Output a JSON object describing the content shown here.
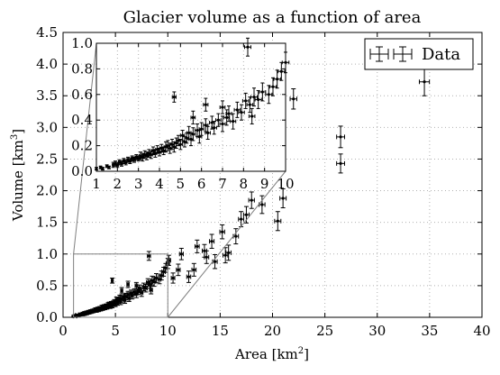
{
  "chart_data": {
    "type": "scatter",
    "title": "Glacier volume as a function of area",
    "xlabel": "Area [km",
    "xlabel_sup": "2",
    "xlabel_close": "]",
    "ylabel": "Volume [km",
    "ylabel_sup": "3",
    "ylabel_close": "]",
    "xlim": [
      0,
      40
    ],
    "ylim": [
      0,
      4.5
    ],
    "xticks": [
      "0",
      "5",
      "10",
      "15",
      "20",
      "25",
      "30",
      "35",
      "40"
    ],
    "yticks": [
      "0.0",
      "0.5",
      "1.0",
      "1.5",
      "2.0",
      "2.5",
      "3.0",
      "3.5",
      "4.0",
      "4.5"
    ],
    "grid": true,
    "legend": {
      "label": "Data",
      "placement": "top-right"
    },
    "inset": {
      "xlim": [
        1,
        10
      ],
      "ylim": [
        0,
        1.0
      ],
      "xticks": [
        "1",
        "2",
        "3",
        "4",
        "5",
        "6",
        "7",
        "8",
        "9",
        "10"
      ],
      "yticks": [
        "0.0",
        "0.2",
        "0.4",
        "0.6",
        "0.8",
        "1.0"
      ],
      "zoom_region": {
        "x": [
          1,
          10
        ],
        "y": [
          0,
          1.0
        ]
      }
    },
    "series": [
      {
        "name": "Data",
        "points": [
          [
            1.0,
            0.02,
            0.03,
            0.01
          ],
          [
            1.2,
            0.03,
            0.03,
            0.01
          ],
          [
            1.3,
            0.02,
            0.03,
            0.01
          ],
          [
            1.5,
            0.04,
            0.04,
            0.01
          ],
          [
            1.6,
            0.03,
            0.04,
            0.01
          ],
          [
            1.8,
            0.05,
            0.04,
            0.02
          ],
          [
            1.9,
            0.06,
            0.04,
            0.02
          ],
          [
            2.0,
            0.05,
            0.05,
            0.02
          ],
          [
            2.1,
            0.07,
            0.05,
            0.02
          ],
          [
            2.2,
            0.06,
            0.05,
            0.02
          ],
          [
            2.3,
            0.08,
            0.05,
            0.02
          ],
          [
            2.4,
            0.07,
            0.05,
            0.02
          ],
          [
            2.5,
            0.09,
            0.05,
            0.02
          ],
          [
            2.6,
            0.08,
            0.06,
            0.02
          ],
          [
            2.7,
            0.1,
            0.06,
            0.02
          ],
          [
            2.8,
            0.09,
            0.06,
            0.02
          ],
          [
            2.9,
            0.11,
            0.06,
            0.02
          ],
          [
            3.0,
            0.1,
            0.06,
            0.02
          ],
          [
            3.1,
            0.12,
            0.06,
            0.03
          ],
          [
            3.2,
            0.11,
            0.06,
            0.03
          ],
          [
            3.3,
            0.13,
            0.07,
            0.03
          ],
          [
            3.4,
            0.12,
            0.07,
            0.03
          ],
          [
            3.5,
            0.14,
            0.07,
            0.03
          ],
          [
            3.6,
            0.13,
            0.07,
            0.03
          ],
          [
            3.7,
            0.16,
            0.07,
            0.03
          ],
          [
            3.8,
            0.14,
            0.07,
            0.03
          ],
          [
            3.9,
            0.17,
            0.08,
            0.03
          ],
          [
            4.0,
            0.15,
            0.08,
            0.03
          ],
          [
            4.1,
            0.18,
            0.08,
            0.03
          ],
          [
            4.2,
            0.16,
            0.08,
            0.03
          ],
          [
            4.3,
            0.19,
            0.08,
            0.04
          ],
          [
            4.4,
            0.2,
            0.08,
            0.04
          ],
          [
            4.5,
            0.18,
            0.09,
            0.04
          ],
          [
            4.6,
            0.21,
            0.09,
            0.04
          ],
          [
            4.7,
            0.19,
            0.09,
            0.04
          ],
          [
            4.8,
            0.22,
            0.09,
            0.04
          ],
          [
            4.9,
            0.24,
            0.09,
            0.04
          ],
          [
            5.0,
            0.21,
            0.1,
            0.04
          ],
          [
            5.1,
            0.28,
            0.1,
            0.04
          ],
          [
            5.2,
            0.23,
            0.1,
            0.04
          ],
          [
            5.3,
            0.26,
            0.1,
            0.04
          ],
          [
            5.4,
            0.3,
            0.1,
            0.05
          ],
          [
            5.5,
            0.25,
            0.1,
            0.05
          ],
          [
            5.6,
            0.29,
            0.11,
            0.05
          ],
          [
            5.8,
            0.32,
            0.11,
            0.05
          ],
          [
            5.9,
            0.27,
            0.11,
            0.05
          ],
          [
            6.0,
            0.33,
            0.11,
            0.05
          ],
          [
            6.2,
            0.36,
            0.11,
            0.05
          ],
          [
            6.3,
            0.3,
            0.12,
            0.05
          ],
          [
            6.5,
            0.38,
            0.12,
            0.05
          ],
          [
            6.6,
            0.34,
            0.12,
            0.05
          ],
          [
            6.8,
            0.4,
            0.12,
            0.05
          ],
          [
            7.0,
            0.37,
            0.13,
            0.06
          ],
          [
            7.2,
            0.42,
            0.13,
            0.06
          ],
          [
            7.3,
            0.45,
            0.13,
            0.06
          ],
          [
            7.5,
            0.39,
            0.13,
            0.06
          ],
          [
            7.7,
            0.48,
            0.14,
            0.06
          ],
          [
            7.9,
            0.46,
            0.14,
            0.06
          ],
          [
            8.1,
            0.55,
            0.14,
            0.06
          ],
          [
            8.3,
            0.52,
            0.14,
            0.06
          ],
          [
            8.5,
            0.58,
            0.15,
            0.07
          ],
          [
            8.7,
            0.56,
            0.15,
            0.07
          ],
          [
            8.9,
            0.62,
            0.15,
            0.07
          ],
          [
            9.2,
            0.6,
            0.15,
            0.07
          ],
          [
            9.4,
            0.66,
            0.16,
            0.07
          ],
          [
            9.6,
            0.72,
            0.16,
            0.07
          ],
          [
            9.8,
            0.78,
            0.16,
            0.07
          ],
          [
            10.0,
            0.85,
            0.16,
            0.08
          ],
          [
            10.1,
            0.9,
            0.17,
            0.08
          ],
          [
            8.2,
            0.97,
            0.15,
            0.07
          ],
          [
            4.7,
            0.58,
            0.09,
            0.04
          ],
          [
            6.2,
            0.52,
            0.11,
            0.05
          ],
          [
            7.0,
            0.5,
            0.12,
            0.05
          ],
          [
            5.6,
            0.42,
            0.1,
            0.05
          ],
          [
            8.4,
            0.43,
            0.14,
            0.06
          ],
          [
            10.5,
            0.62,
            0.17,
            0.08
          ],
          [
            11.0,
            0.75,
            0.18,
            0.09
          ],
          [
            11.3,
            1.0,
            0.18,
            0.09
          ],
          [
            12.0,
            0.64,
            0.19,
            0.09
          ],
          [
            12.5,
            0.75,
            0.2,
            0.1
          ],
          [
            12.8,
            1.12,
            0.2,
            0.1
          ],
          [
            13.5,
            1.05,
            0.21,
            0.1
          ],
          [
            13.7,
            0.95,
            0.21,
            0.1
          ],
          [
            14.2,
            1.2,
            0.22,
            0.11
          ],
          [
            14.5,
            0.88,
            0.22,
            0.11
          ],
          [
            15.2,
            1.35,
            0.23,
            0.11
          ],
          [
            15.5,
            0.98,
            0.23,
            0.12
          ],
          [
            15.8,
            1.02,
            0.24,
            0.12
          ],
          [
            16.5,
            1.28,
            0.25,
            0.12
          ],
          [
            17.0,
            1.55,
            0.25,
            0.12
          ],
          [
            17.5,
            1.62,
            0.26,
            0.13
          ],
          [
            18.0,
            1.85,
            0.27,
            0.13
          ],
          [
            19.0,
            1.78,
            0.28,
            0.14
          ],
          [
            20.5,
            1.52,
            0.3,
            0.15
          ],
          [
            21.0,
            1.88,
            0.3,
            0.15
          ],
          [
            22.0,
            3.45,
            0.32,
            0.16
          ],
          [
            26.5,
            2.85,
            0.38,
            0.17
          ],
          [
            26.5,
            2.43,
            0.38,
            0.15
          ],
          [
            34.5,
            3.72,
            0.48,
            0.22
          ]
        ]
      }
    ]
  }
}
